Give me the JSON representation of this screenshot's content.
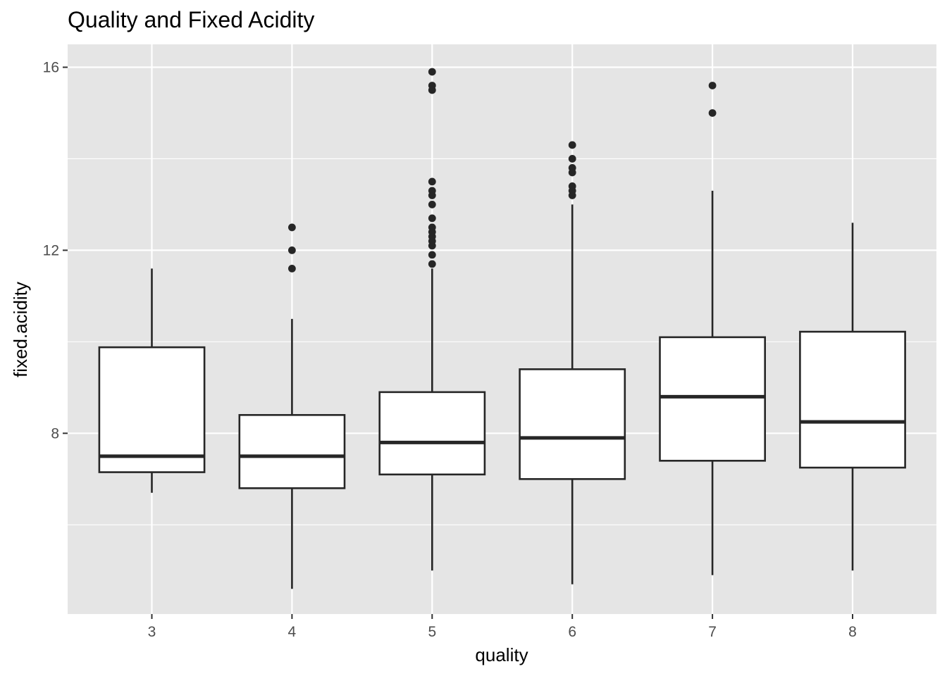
{
  "chart_data": {
    "type": "boxplot",
    "title": "Quality and Fixed Acidity",
    "xlabel": "quality",
    "ylabel": "fixed.acidity",
    "ylim": [
      4.05,
      16.5
    ],
    "yticks": [
      8,
      12,
      16
    ],
    "ytick_labels": [
      "8",
      "12",
      "16"
    ],
    "categories": [
      "3",
      "4",
      "5",
      "6",
      "7",
      "8"
    ],
    "boxes": [
      {
        "category": "3",
        "whisker_low": 6.7,
        "q1": 7.15,
        "median": 7.5,
        "q3": 9.88,
        "whisker_high": 11.6,
        "outliers": []
      },
      {
        "category": "4",
        "whisker_low": 4.6,
        "q1": 6.8,
        "median": 7.5,
        "q3": 8.4,
        "whisker_high": 10.5,
        "outliers": [
          11.6,
          12.0,
          12.5
        ]
      },
      {
        "category": "5",
        "whisker_low": 5.0,
        "q1": 7.1,
        "median": 7.8,
        "q3": 8.9,
        "whisker_high": 11.6,
        "outliers": [
          11.7,
          11.9,
          12.1,
          12.2,
          12.3,
          12.4,
          12.5,
          12.7,
          13.0,
          13.2,
          13.3,
          13.5,
          15.5,
          15.6,
          15.9
        ]
      },
      {
        "category": "6",
        "whisker_low": 4.7,
        "q1": 7.0,
        "median": 7.9,
        "q3": 9.4,
        "whisker_high": 13.0,
        "outliers": [
          13.2,
          13.3,
          13.4,
          13.7,
          13.8,
          14.0,
          14.3
        ]
      },
      {
        "category": "7",
        "whisker_low": 4.9,
        "q1": 7.4,
        "median": 8.8,
        "q3": 10.1,
        "whisker_high": 13.3,
        "outliers": [
          15.0,
          15.6
        ]
      },
      {
        "category": "8",
        "whisker_low": 5.0,
        "q1": 7.25,
        "median": 8.25,
        "q3": 10.22,
        "whisker_high": 12.6,
        "outliers": []
      }
    ],
    "grid": true,
    "legend": "none",
    "colors": {
      "panel_background": "#e5e5e5",
      "grid_line": "#ffffff",
      "box_fill": "#ffffff",
      "box_stroke": "#262626",
      "outlier": "#262626",
      "tick_text": "#4d4d4d"
    }
  }
}
